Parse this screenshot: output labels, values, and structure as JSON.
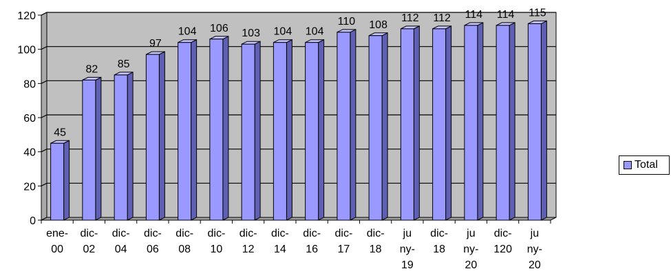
{
  "chart_data": {
    "type": "bar",
    "categories": [
      [
        "ene-",
        "00"
      ],
      [
        "dic-",
        "02"
      ],
      [
        "dic-",
        "04"
      ],
      [
        "dic-",
        "06"
      ],
      [
        "dic-",
        "08"
      ],
      [
        "dic-",
        "10"
      ],
      [
        "dic-",
        "12"
      ],
      [
        "dic-",
        "14"
      ],
      [
        "dic-",
        "16"
      ],
      [
        "dic-",
        "17"
      ],
      [
        "dic-",
        "18"
      ],
      [
        "ju",
        "ny-",
        "19"
      ],
      [
        "dic-",
        "18"
      ],
      [
        "ju",
        "ny-",
        "20"
      ],
      [
        "dic-",
        "120"
      ],
      [
        "ju",
        "ny-",
        "20"
      ]
    ],
    "series": [
      {
        "name": "Total",
        "values": [
          45,
          82,
          85,
          97,
          104,
          106,
          103,
          104,
          104,
          110,
          108,
          112,
          112,
          114,
          114,
          115
        ]
      }
    ],
    "ylim": [
      0,
      120
    ],
    "yticks": [
      0,
      20,
      40,
      60,
      80,
      100,
      120
    ],
    "grid": true,
    "legend_position": "right",
    "colors": {
      "bar_front": "#9999ff",
      "bar_side": "#5f5fb3",
      "bar_top": "#c4c4ff",
      "plot_wall": "#c0c0c0",
      "gridline": "#000000"
    }
  }
}
